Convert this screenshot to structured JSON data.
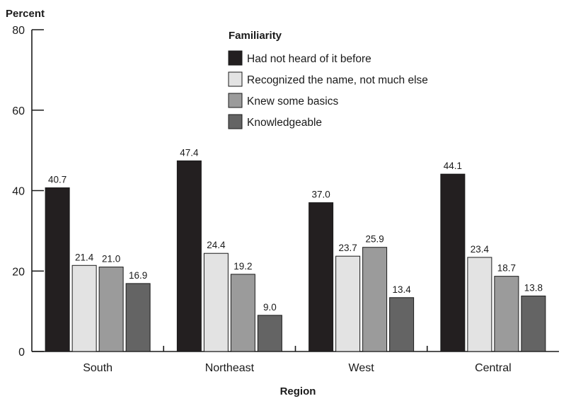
{
  "chart_data": {
    "type": "bar",
    "ylabel": "Percent",
    "xlabel": "Region",
    "ylim": [
      0,
      80
    ],
    "yticks": [
      0,
      20,
      40,
      60,
      80
    ],
    "grid": false,
    "legend_title": "Familiarity",
    "legend_position": "top-right",
    "categories": [
      "South",
      "Northeast",
      "West",
      "Central"
    ],
    "series": [
      {
        "name": "Had not heard of it before",
        "color": "#231f20",
        "values": [
          40.7,
          47.4,
          37.0,
          44.1
        ]
      },
      {
        "name": "Recognized the name, not much else",
        "color": "#e3e3e3",
        "values": [
          21.4,
          24.4,
          23.7,
          23.4
        ]
      },
      {
        "name": "Knew some basics",
        "color": "#9b9b9b",
        "values": [
          21.0,
          19.2,
          25.9,
          18.7
        ]
      },
      {
        "name": "Knowledgeable",
        "color": "#646464",
        "values": [
          16.9,
          9.0,
          13.4,
          13.8
        ]
      }
    ],
    "data_labels": [
      [
        "40.7",
        "21.4",
        "21.0",
        "16.9"
      ],
      [
        "47.4",
        "24.4",
        "19.2",
        "9.0"
      ],
      [
        "37.0",
        "23.7",
        "25.9",
        "13.4"
      ],
      [
        "44.1",
        "23.4",
        "18.7",
        "13.8"
      ]
    ]
  }
}
